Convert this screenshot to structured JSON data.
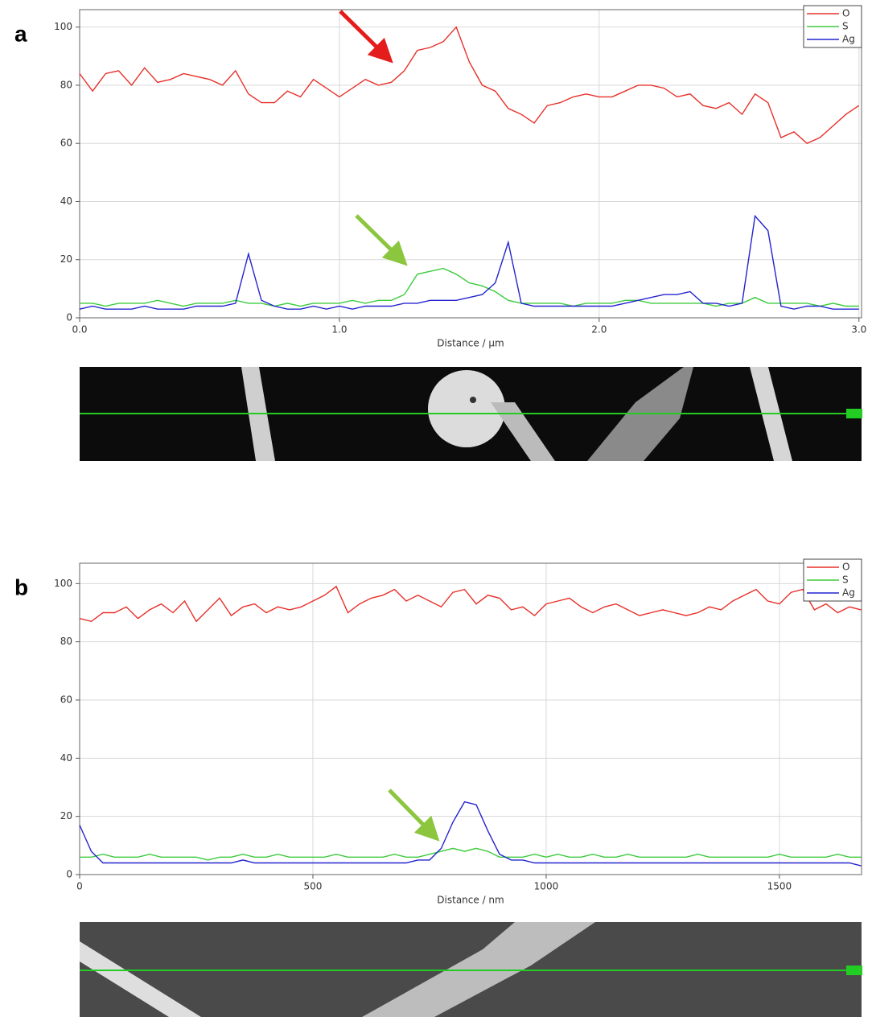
{
  "chart_data": [
    {
      "type": "line",
      "panel_label": "a",
      "x_label": "Distance / µm",
      "legend": "upper right",
      "grid": true,
      "xlim": [
        0,
        3.01
      ],
      "ylim": [
        0,
        106
      ],
      "xticks": [
        {
          "value": 0,
          "label": "0.0"
        },
        {
          "value": 1,
          "label": "1.0"
        },
        {
          "value": 2,
          "label": "2.0"
        },
        {
          "value": 3,
          "label": "3.0"
        }
      ],
      "yticks": [
        0,
        20,
        40,
        60,
        80,
        100
      ],
      "x": [
        0,
        0.05,
        0.1,
        0.15,
        0.2,
        0.25,
        0.3,
        0.35,
        0.4,
        0.45,
        0.5,
        0.55,
        0.6,
        0.65,
        0.7,
        0.75,
        0.8,
        0.85,
        0.9,
        0.95,
        1,
        1.05,
        1.1,
        1.15,
        1.2,
        1.25,
        1.3,
        1.35,
        1.4,
        1.45,
        1.5,
        1.55,
        1.6,
        1.65,
        1.7,
        1.75,
        1.8,
        1.85,
        1.9,
        1.95,
        2,
        2.05,
        2.1,
        2.15,
        2.2,
        2.25,
        2.3,
        2.35,
        2.4,
        2.45,
        2.5,
        2.55,
        2.6,
        2.65,
        2.7,
        2.75,
        2.8,
        2.85,
        2.9,
        2.95,
        3
      ],
      "series": [
        {
          "name": "O",
          "color": "#e8302a",
          "values": [
            84,
            78,
            84,
            85,
            80,
            86,
            81,
            82,
            84,
            83,
            82,
            80,
            85,
            77,
            74,
            74,
            78,
            76,
            82,
            79,
            76,
            79,
            82,
            80,
            81,
            85,
            92,
            93,
            95,
            100,
            88,
            80,
            78,
            72,
            70,
            67,
            73,
            74,
            76,
            77,
            76,
            76,
            78,
            80,
            80,
            79,
            76,
            77,
            73,
            72,
            74,
            70,
            77,
            74,
            62,
            64,
            60,
            62,
            66,
            70,
            73
          ]
        },
        {
          "name": "S",
          "color": "#3ccc3c",
          "values": [
            5,
            5,
            4,
            5,
            5,
            5,
            6,
            5,
            4,
            5,
            5,
            5,
            6,
            5,
            5,
            4,
            5,
            4,
            5,
            5,
            5,
            6,
            5,
            6,
            6,
            8,
            15,
            16,
            17,
            15,
            12,
            11,
            9,
            6,
            5,
            5,
            5,
            5,
            4,
            5,
            5,
            5,
            6,
            6,
            5,
            5,
            5,
            5,
            5,
            4,
            5,
            5,
            7,
            5,
            5,
            5,
            5,
            4,
            5,
            4,
            4
          ]
        },
        {
          "name": "Ag",
          "color": "#2424d0",
          "values": [
            3,
            4,
            3,
            3,
            3,
            4,
            3,
            3,
            3,
            4,
            4,
            4,
            5,
            22,
            6,
            4,
            3,
            3,
            4,
            3,
            4,
            3,
            4,
            4,
            4,
            5,
            5,
            6,
            6,
            6,
            7,
            8,
            12,
            26,
            5,
            4,
            4,
            4,
            4,
            4,
            4,
            4,
            5,
            6,
            7,
            8,
            8,
            9,
            5,
            5,
            4,
            5,
            35,
            30,
            4,
            3,
            4,
            4,
            3,
            3,
            3
          ]
        }
      ]
    },
    {
      "type": "line",
      "panel_label": "b",
      "x_label": "Distance / nm",
      "legend": "upper right",
      "grid": true,
      "xlim": [
        0,
        1676
      ],
      "ylim": [
        0,
        107
      ],
      "xticks": [
        0,
        500,
        1000,
        1500
      ],
      "yticks": [
        0,
        20,
        40,
        60,
        80,
        100
      ],
      "x": [
        0,
        25,
        50,
        75,
        100,
        125,
        150,
        175,
        200,
        225,
        250,
        275,
        300,
        325,
        350,
        375,
        400,
        425,
        450,
        475,
        500,
        525,
        550,
        575,
        600,
        625,
        650,
        675,
        700,
        725,
        750,
        775,
        800,
        825,
        850,
        875,
        900,
        925,
        950,
        975,
        1000,
        1025,
        1050,
        1075,
        1100,
        1125,
        1150,
        1175,
        1200,
        1225,
        1250,
        1275,
        1300,
        1325,
        1350,
        1375,
        1400,
        1425,
        1450,
        1475,
        1500,
        1525,
        1550,
        1575,
        1600,
        1625,
        1650,
        1675
      ],
      "series": [
        {
          "name": "O",
          "color": "#e8302a",
          "values": [
            88,
            87,
            90,
            90,
            92,
            88,
            91,
            93,
            90,
            94,
            87,
            91,
            95,
            89,
            92,
            93,
            90,
            92,
            91,
            92,
            94,
            96,
            99,
            90,
            93,
            95,
            96,
            98,
            94,
            96,
            94,
            92,
            97,
            98,
            93,
            96,
            95,
            91,
            92,
            89,
            93,
            94,
            95,
            92,
            90,
            92,
            93,
            91,
            89,
            90,
            91,
            90,
            89,
            90,
            92,
            91,
            94,
            96,
            98,
            94,
            93,
            97,
            98,
            91,
            93,
            90,
            92,
            91
          ]
        },
        {
          "name": "S",
          "color": "#3ccc3c",
          "values": [
            6,
            6,
            7,
            6,
            6,
            6,
            7,
            6,
            6,
            6,
            6,
            5,
            6,
            6,
            7,
            6,
            6,
            7,
            6,
            6,
            6,
            6,
            7,
            6,
            6,
            6,
            6,
            7,
            6,
            6,
            7,
            8,
            9,
            8,
            9,
            8,
            6,
            6,
            6,
            7,
            6,
            7,
            6,
            6,
            7,
            6,
            6,
            7,
            6,
            6,
            6,
            6,
            6,
            7,
            6,
            6,
            6,
            6,
            6,
            6,
            7,
            6,
            6,
            6,
            6,
            7,
            6,
            6
          ]
        },
        {
          "name": "Ag",
          "color": "#2424d0",
          "values": [
            17,
            8,
            4,
            4,
            4,
            4,
            4,
            4,
            4,
            4,
            4,
            4,
            4,
            4,
            5,
            4,
            4,
            4,
            4,
            4,
            4,
            4,
            4,
            4,
            4,
            4,
            4,
            4,
            4,
            5,
            5,
            9,
            18,
            25,
            24,
            15,
            7,
            5,
            5,
            4,
            4,
            4,
            4,
            4,
            4,
            4,
            4,
            4,
            4,
            4,
            4,
            4,
            4,
            4,
            4,
            4,
            4,
            4,
            4,
            4,
            4,
            4,
            4,
            4,
            4,
            4,
            4,
            3
          ]
        }
      ]
    }
  ]
}
